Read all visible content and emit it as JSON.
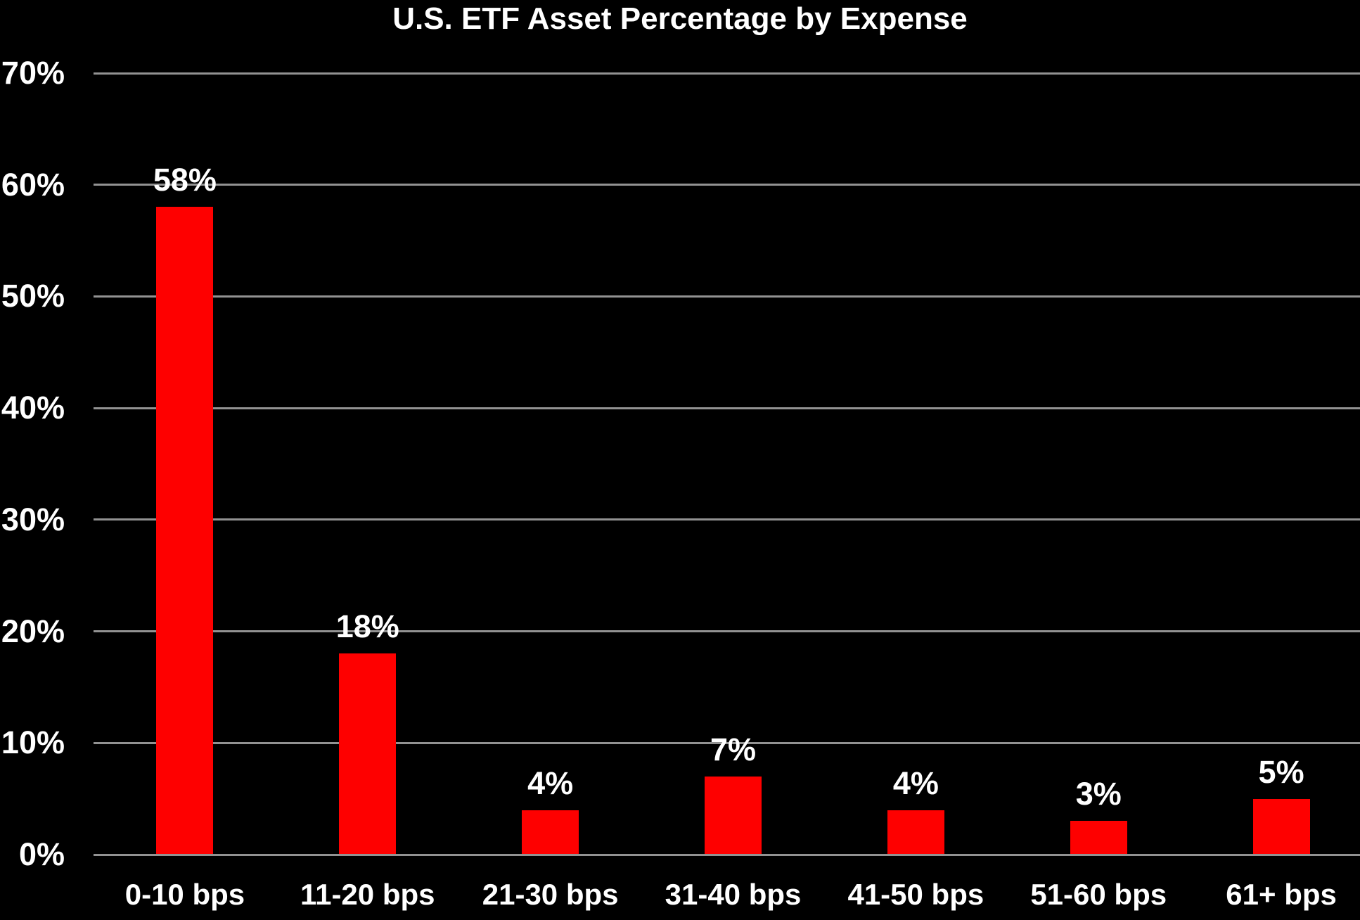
{
  "colors": {
    "background": "#000000",
    "bar": "#fe0000",
    "gridline": "#929292",
    "text": "#ffffff"
  },
  "chart_data": {
    "type": "bar",
    "title": "U.S. ETF Asset Percentage by Expense",
    "categories": [
      "0-10 bps",
      "11-20 bps",
      "21-30 bps",
      "31-40 bps",
      "41-50 bps",
      "51-60 bps",
      "61+ bps"
    ],
    "values": [
      58,
      18,
      4,
      7,
      4,
      3,
      5
    ],
    "value_labels": [
      "58%",
      "18%",
      "4%",
      "7%",
      "4%",
      "3%",
      "5%"
    ],
    "xlabel": "",
    "ylabel": "",
    "ylim": [
      0,
      70
    ],
    "ytick_interval": 10,
    "ytick_labels": [
      "0%",
      "10%",
      "20%",
      "30%",
      "40%",
      "50%",
      "60%",
      "70%"
    ],
    "grid": true,
    "legend": false,
    "data_labels": true
  }
}
